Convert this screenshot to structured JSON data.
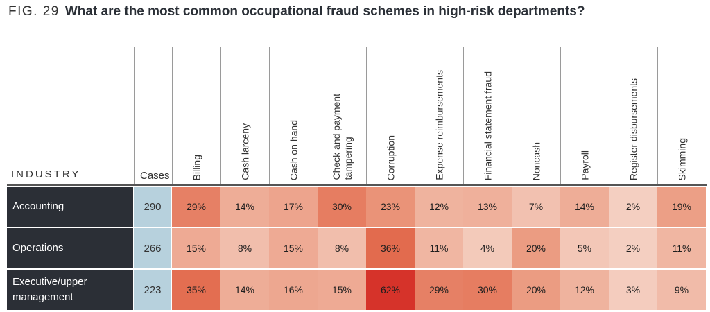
{
  "title": {
    "fig": "FIG. 29",
    "question": "What are the most common occupational fraud schemes in high-risk departments?"
  },
  "chart_data": {
    "type": "heatmap",
    "row_header": "INDUSTRY",
    "cases_header": "Cases",
    "columns": [
      "Billing",
      "Cash larceny",
      "Cash on hand",
      "Check and payment\ntampering",
      "Corruption",
      "Expense reimbursements",
      "Financial statement fraud",
      "Noncash",
      "Payroll",
      "Register disbursements",
      "Skimming"
    ],
    "rows": [
      {
        "label": "Accounting",
        "cases": "290",
        "values": [
          29,
          14,
          17,
          30,
          23,
          12,
          13,
          7,
          14,
          2,
          19
        ]
      },
      {
        "label": "Operations",
        "cases": "266",
        "values": [
          15,
          8,
          15,
          8,
          36,
          11,
          4,
          20,
          5,
          2,
          11
        ]
      },
      {
        "label": "Executive/upper\nmanagement",
        "cases": "223",
        "values": [
          35,
          14,
          16,
          15,
          62,
          29,
          30,
          20,
          12,
          3,
          9
        ]
      }
    ],
    "value_suffix": "%",
    "color_scale": [
      "#f5d5c8",
      "#eb9a80",
      "#df5a3c",
      "#d6332a"
    ]
  }
}
